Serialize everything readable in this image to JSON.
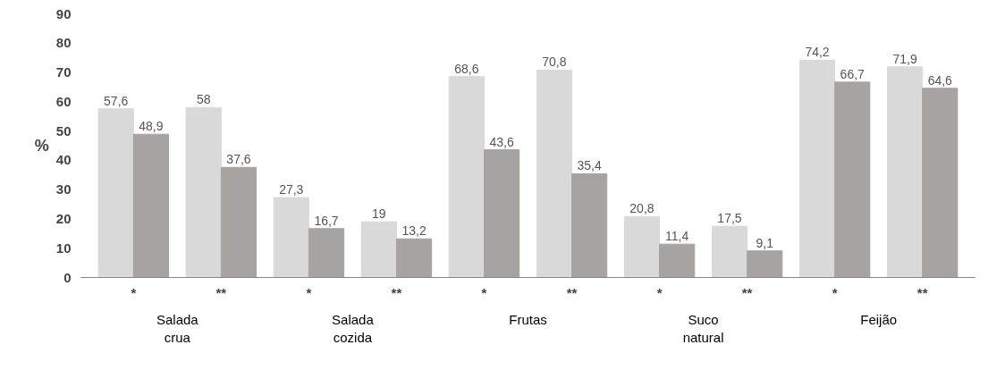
{
  "chart_data": {
    "type": "bar",
    "ylabel": "%",
    "categories": [
      "*",
      "**",
      "*",
      "**",
      "*",
      "**",
      "*",
      "**",
      "*",
      "**"
    ],
    "series": [
      {
        "color": "#d9d9d9",
        "values": [
          57.6,
          58,
          27.3,
          19,
          68.6,
          70.8,
          20.8,
          17.5,
          74.2,
          71.9
        ],
        "value_labels": [
          "57,6",
          "58",
          "27,3",
          "19",
          "68,6",
          "70,8",
          "20,8",
          "17,5",
          "74,2",
          "71,9"
        ]
      },
      {
        "color": "#a8a3a3",
        "values": [
          48.9,
          37.6,
          16.7,
          13.2,
          43.6,
          35.4,
          11.4,
          9.1,
          66.7,
          64.6
        ],
        "value_labels": [
          "48,9",
          "37,6",
          "16,7",
          "13,2",
          "43,6",
          "35,4",
          "11,4",
          "9,1",
          "66,7",
          "64,6"
        ]
      }
    ],
    "ylim": [
      0,
      90
    ],
    "yticks": [
      0,
      10,
      20,
      30,
      40,
      50,
      60,
      70,
      80,
      90
    ],
    "grid": false,
    "annotations": [
      "Salada\ncrua",
      "Salada\ncozida",
      "Frutas",
      "Suco\nnatural",
      "Feijão"
    ]
  }
}
